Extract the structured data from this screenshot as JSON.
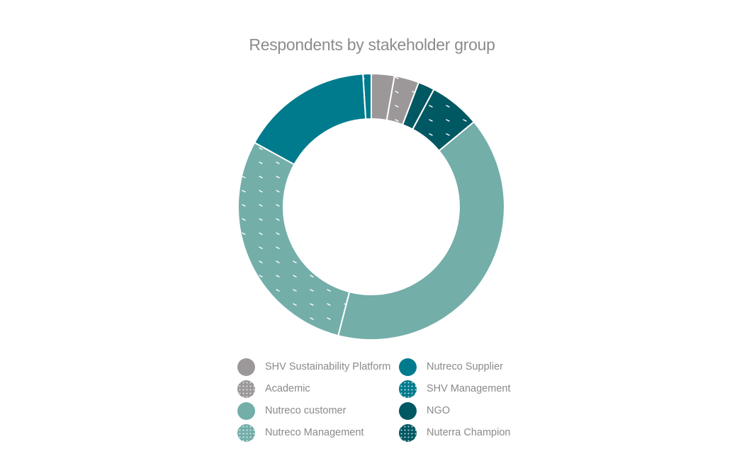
{
  "chart_data": {
    "type": "pie",
    "title": "Respondents by stakeholder group",
    "donut": true,
    "legend_position": "bottom",
    "categories": [
      "SHV Sustainability Platform",
      "Academic",
      "NGO",
      "Nuterra Champion",
      "Nutreco customer",
      "Nutreco Management",
      "Nutreco Supplier",
      "SHV Management"
    ],
    "values": [
      2.8,
      3.0,
      2.0,
      6.2,
      40.0,
      29.0,
      16.0,
      1.0
    ],
    "unit": "percent (estimated)",
    "colors": [
      "#9c9899",
      "#9c9899",
      "#005862",
      "#005862",
      "#73aea9",
      "#73aea9",
      "#007b8d",
      "#007b8d"
    ],
    "patterned": [
      false,
      true,
      false,
      true,
      false,
      true,
      false,
      true
    ]
  },
  "legend": {
    "items": [
      {
        "label": "SHV Sustainability Platform",
        "color": "#9c9899",
        "patterned": false
      },
      {
        "label": "Academic",
        "color": "#9c9899",
        "patterned": true
      },
      {
        "label": "Nutreco customer",
        "color": "#73aea9",
        "patterned": false
      },
      {
        "label": "Nutreco Management",
        "color": "#73aea9",
        "patterned": true
      },
      {
        "label": "Nutreco Supplier",
        "color": "#007b8d",
        "patterned": false
      },
      {
        "label": "SHV Management",
        "color": "#007b8d",
        "patterned": true
      },
      {
        "label": "NGO",
        "color": "#005862",
        "patterned": false
      },
      {
        "label": "Nuterra Champion",
        "color": "#005862",
        "patterned": true
      }
    ]
  }
}
